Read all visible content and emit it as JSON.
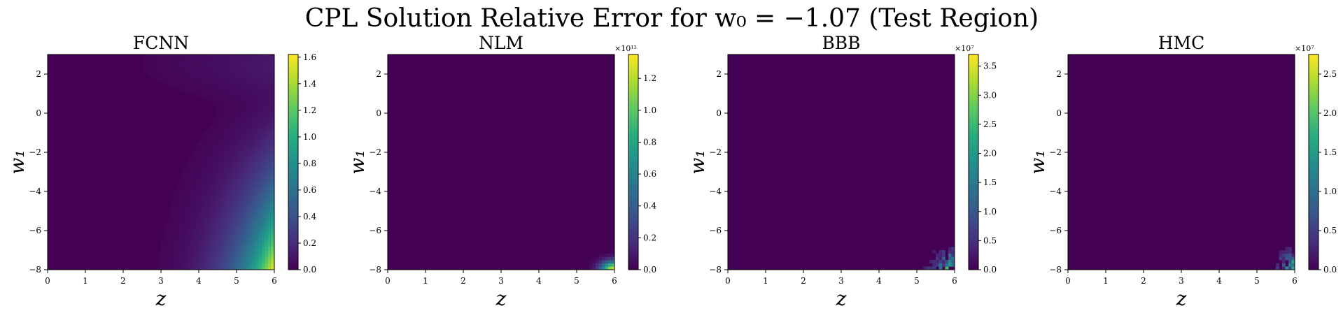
{
  "figure": {
    "title": "CPL Solution Relative Error for w₀ = −1.07 (Test Region)"
  },
  "chart_data": [
    {
      "type": "heatmap",
      "title": "FCNN",
      "xlabel": "z",
      "ylabel": "w₁",
      "xlim": [
        0,
        6
      ],
      "ylim": [
        -8,
        3
      ],
      "xticks": [
        "0",
        "1",
        "2",
        "3",
        "4",
        "5",
        "6"
      ],
      "yticks": [
        "−8",
        "−6",
        "−4",
        "−2",
        "0",
        "2"
      ],
      "colorbar": {
        "min": 0,
        "max": 1.62,
        "ticks": [
          "0.0",
          "0.2",
          "0.4",
          "0.6",
          "0.8",
          "1.0",
          "1.2",
          "1.4",
          "1.6"
        ],
        "multiplier": ""
      },
      "colormap": "viridis",
      "pattern": "smooth error increasing with z and toward w₁ = −8; maximum ≈1.62 at z = 6, w₁ = −8"
    },
    {
      "type": "heatmap",
      "title": "NLM",
      "xlabel": "z",
      "ylabel": "w₁",
      "xlim": [
        0,
        6
      ],
      "ylim": [
        -8,
        3
      ],
      "xticks": [
        "0",
        "1",
        "2",
        "3",
        "4",
        "5",
        "6"
      ],
      "yticks": [
        "−8",
        "−6",
        "−4",
        "−2",
        "0",
        "2"
      ],
      "colorbar": {
        "min": 0,
        "max": 1.35,
        "ticks": [
          "0.0",
          "0.2",
          "0.4",
          "0.6",
          "0.8",
          "1.0",
          "1.2"
        ],
        "multiplier": "×10¹²"
      },
      "colormap": "viridis",
      "pattern": "near zero everywhere except a small bright corner at z ≈ 6, w₁ ≈ −8"
    },
    {
      "type": "heatmap",
      "title": "BBB",
      "xlabel": "z",
      "ylabel": "w₁",
      "xlim": [
        0,
        6
      ],
      "ylim": [
        -8,
        3
      ],
      "xticks": [
        "0",
        "1",
        "2",
        "3",
        "4",
        "5",
        "6"
      ],
      "yticks": [
        "−8",
        "−6",
        "−4",
        "−2",
        "0",
        "2"
      ],
      "colorbar": {
        "min": 0,
        "max": 3.7,
        "ticks": [
          "0.0",
          "0.5",
          "1.0",
          "1.5",
          "2.0",
          "2.5",
          "3.0",
          "3.5"
        ],
        "multiplier": "×10⁷"
      },
      "colormap": "viridis",
      "pattern": "near zero everywhere except noisy speckled pixels in the corner z > 5, w₁ < −6.5"
    },
    {
      "type": "heatmap",
      "title": "HMC",
      "xlabel": "z",
      "ylabel": "w₁",
      "xlim": [
        0,
        6
      ],
      "ylim": [
        -8,
        3
      ],
      "xticks": [
        "0",
        "1",
        "2",
        "3",
        "4",
        "5",
        "6"
      ],
      "yticks": [
        "−8",
        "−6",
        "−4",
        "−2",
        "0",
        "2"
      ],
      "colorbar": {
        "min": 0,
        "max": 2.75,
        "ticks": [
          "0.0",
          "0.5",
          "1.0",
          "1.5",
          "2.0",
          "2.5"
        ],
        "multiplier": "×10⁷"
      },
      "colormap": "viridis",
      "pattern": "near zero everywhere except noisy speckled pixels in the corner z > 5.3, w₁ < −6.5"
    }
  ]
}
